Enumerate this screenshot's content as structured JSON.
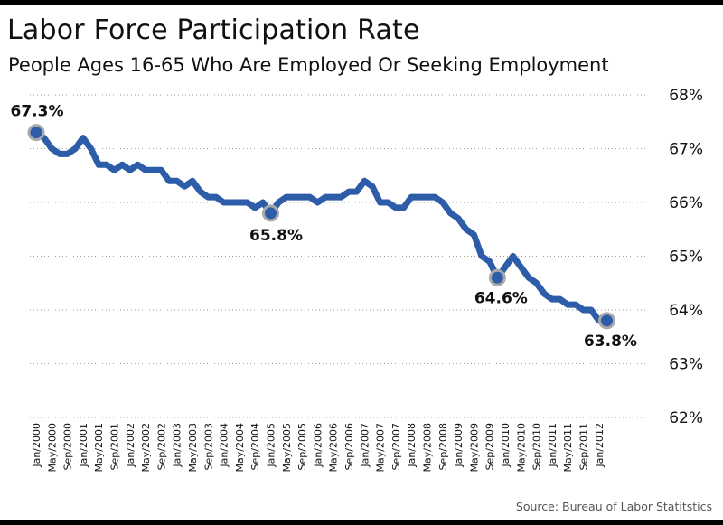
{
  "chart_data": {
    "type": "line",
    "title": "Labor Force Participation Rate",
    "subtitle": "People Ages 16-65 Who Are Employed Or Seeking Employment",
    "source": "Source: Bureau of Labor Statitstics",
    "ylim": [
      62,
      68
    ],
    "ytick_labels": [
      "68%",
      "67%",
      "66%",
      "65%",
      "64%",
      "63%",
      "62%"
    ],
    "yticks": [
      68,
      67,
      66,
      65,
      64,
      63,
      62
    ],
    "grid": true,
    "x_tick_labels": [
      "Jan/2000",
      "May/2000",
      "Sep/2000",
      "Jan/2001",
      "May/2001",
      "Sep/2001",
      "Jan/2002",
      "May/2002",
      "Sep/2002",
      "Jan/2003",
      "May/2003",
      "Sep/2003",
      "Jan/2004",
      "May/2004",
      "Sep/2004",
      "Jan/2005",
      "May/2005",
      "Sep/2005",
      "Jan/2006",
      "May/2006",
      "Sep/2006",
      "Jan/2007",
      "May/2007",
      "Sep/2007",
      "Jan/2008",
      "May/2008",
      "Sep/2008",
      "Jan/2009",
      "May/2009",
      "Sep/2009",
      "Jan/2010",
      "May/2010",
      "Sep/2010",
      "Jan/2011",
      "May/2011",
      "Sep/2011",
      "Jan/2012"
    ],
    "series_color": "#2d5da8",
    "series": [
      {
        "x": [
          "Jan/2000",
          "Mar/2000",
          "May/2000",
          "Jul/2000",
          "Sep/2000",
          "Nov/2000",
          "Jan/2001",
          "Mar/2001",
          "May/2001",
          "Jul/2001",
          "Sep/2001",
          "Nov/2001",
          "Jan/2002",
          "Mar/2002",
          "May/2002",
          "Jul/2002",
          "Sep/2002",
          "Nov/2002",
          "Jan/2003",
          "Mar/2003",
          "May/2003",
          "Jul/2003",
          "Sep/2003",
          "Nov/2003",
          "Jan/2004",
          "Mar/2004",
          "May/2004",
          "Jul/2004",
          "Sep/2004",
          "Nov/2004",
          "Jan/2005",
          "Mar/2005",
          "May/2005",
          "Jul/2005",
          "Sep/2005",
          "Nov/2005",
          "Jan/2006",
          "Mar/2006",
          "May/2006",
          "Jul/2006",
          "Sep/2006",
          "Nov/2006",
          "Jan/2007",
          "Mar/2007",
          "May/2007",
          "Jul/2007",
          "Sep/2007",
          "Nov/2007",
          "Jan/2008",
          "Mar/2008",
          "May/2008",
          "Jul/2008",
          "Sep/2008",
          "Nov/2008",
          "Jan/2009",
          "Mar/2009",
          "May/2009",
          "Jul/2009",
          "Sep/2009",
          "Nov/2009",
          "Jan/2010",
          "Mar/2010",
          "May/2010",
          "Jul/2010",
          "Sep/2010",
          "Nov/2010",
          "Jan/2011",
          "Mar/2011",
          "May/2011",
          "Jul/2011",
          "Sep/2011",
          "Nov/2011",
          "Jan/2012",
          "Mar/2012"
        ],
        "values": [
          67.3,
          67.2,
          67.0,
          66.9,
          66.9,
          67.0,
          67.2,
          67.0,
          66.7,
          66.7,
          66.6,
          66.7,
          66.6,
          66.7,
          66.6,
          66.6,
          66.6,
          66.4,
          66.4,
          66.3,
          66.4,
          66.2,
          66.1,
          66.1,
          66.0,
          66.0,
          66.0,
          66.0,
          65.9,
          66.0,
          65.8,
          66.0,
          66.1,
          66.1,
          66.1,
          66.1,
          66.0,
          66.1,
          66.1,
          66.1,
          66.2,
          66.2,
          66.4,
          66.3,
          66.0,
          66.0,
          65.9,
          65.9,
          66.1,
          66.1,
          66.1,
          66.1,
          66.0,
          65.8,
          65.7,
          65.5,
          65.4,
          65.0,
          64.9,
          64.6,
          64.8,
          65.0,
          64.8,
          64.6,
          64.5,
          64.3,
          64.2,
          64.2,
          64.1,
          64.1,
          64.0,
          64.0,
          63.8,
          63.8
        ]
      }
    ],
    "annotations": [
      {
        "label": "67.3%",
        "x": "Jan/2000",
        "value": 67.3
      },
      {
        "label": "65.8%",
        "x": "Jan/2005",
        "value": 65.8
      },
      {
        "label": "64.6%",
        "x": "Nov/2009",
        "value": 64.6
      },
      {
        "label": "63.8%",
        "x": "Mar/2012",
        "value": 63.8
      }
    ]
  }
}
